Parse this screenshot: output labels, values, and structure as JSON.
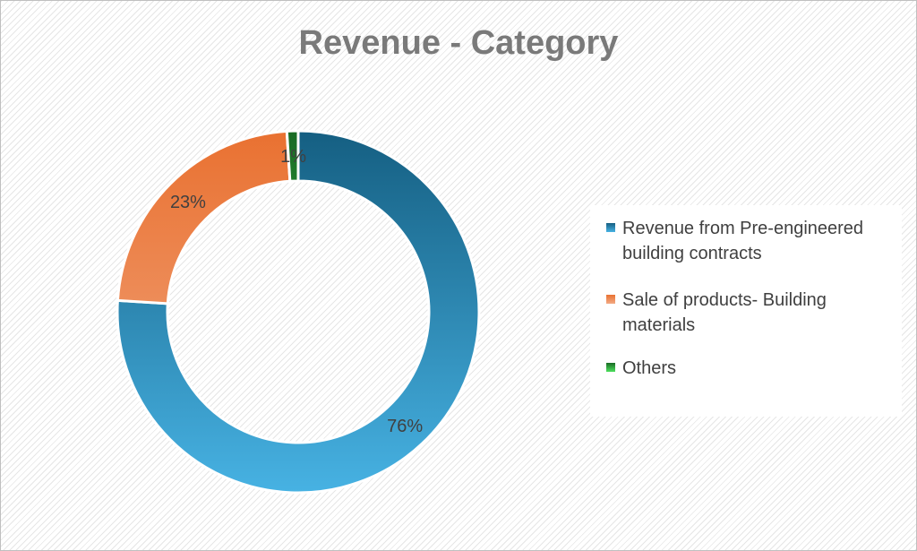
{
  "chart_data": {
    "type": "pie",
    "title": "Revenue - Category",
    "categories": [
      "Revenue from Pre-engineered building contracts",
      "Sale of products- Building materials",
      "Others"
    ],
    "values": [
      76,
      23,
      1
    ],
    "data_labels": [
      "76%",
      "23%",
      "1%"
    ],
    "donut": true,
    "legend_position": "right",
    "colors": [
      {
        "dark": "#155f82",
        "light": "#47b2e3"
      },
      {
        "dark": "#e97131",
        "light": "#f2aa84"
      },
      {
        "dark": "#196b24",
        "light": "#4ee05e"
      }
    ]
  }
}
